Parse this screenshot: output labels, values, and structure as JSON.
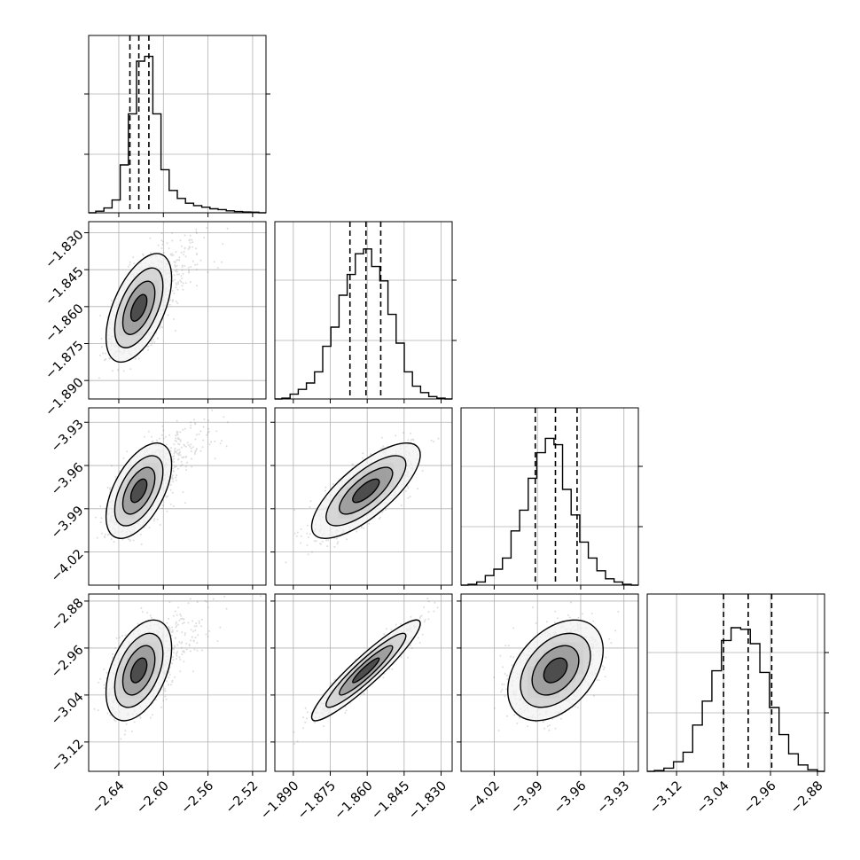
{
  "chart_data": {
    "type": "corner",
    "grid": true,
    "parameters": [
      {
        "range": [
          -2.667,
          -2.508
        ],
        "ticks": [
          "−2.64",
          "−2.60",
          "−2.56",
          "−2.52"
        ],
        "quantiles": [
          -2.63,
          -2.622,
          -2.613
        ],
        "hist_y": [
          0.01,
          0.03,
          0.08,
          0.3,
          0.62,
          0.95,
          0.98,
          0.62,
          0.27,
          0.14,
          0.09,
          0.06,
          0.045,
          0.035,
          0.025,
          0.02,
          0.012,
          0.008,
          0.005,
          0.004
        ]
      },
      {
        "range": [
          -1.8975,
          -1.8255
        ],
        "ticks": [
          "−1.890",
          "−1.875",
          "−1.860",
          "−1.845",
          "−1.830"
        ],
        "quantiles": [
          -1.867,
          -1.8605,
          -1.8545
        ],
        "hist_y": [
          0.005,
          0.03,
          0.06,
          0.1,
          0.17,
          0.33,
          0.45,
          0.65,
          0.78,
          0.91,
          0.94,
          0.83,
          0.74,
          0.53,
          0.35,
          0.17,
          0.08,
          0.04,
          0.015,
          0.005
        ]
      },
      {
        "range": [
          -4.043,
          -3.92
        ],
        "ticks": [
          "−4.02",
          "−3.99",
          "−3.96",
          "−3.93"
        ],
        "quantiles": [
          -3.9915,
          -3.9775,
          -3.9625
        ],
        "hist_y": [
          0.005,
          0.02,
          0.06,
          0.1,
          0.17,
          0.34,
          0.47,
          0.67,
          0.83,
          0.92,
          0.88,
          0.6,
          0.44,
          0.27,
          0.17,
          0.09,
          0.04,
          0.02,
          0.005
        ]
      },
      {
        "range": [
          -3.17,
          -2.868
        ],
        "ticks": [
          "−3.12",
          "−3.04",
          "−2.96",
          "−2.88"
        ],
        "quantiles": [
          -3.04,
          -2.998,
          -2.958
        ],
        "hist_y": [
          0.005,
          0.02,
          0.06,
          0.12,
          0.29,
          0.44,
          0.63,
          0.82,
          0.9,
          0.89,
          0.8,
          0.62,
          0.4,
          0.23,
          0.11,
          0.04,
          0.01
        ]
      }
    ],
    "row_tick_params": [
      1,
      2,
      3
    ],
    "col_tick_params": [
      0,
      1,
      2,
      3
    ]
  }
}
